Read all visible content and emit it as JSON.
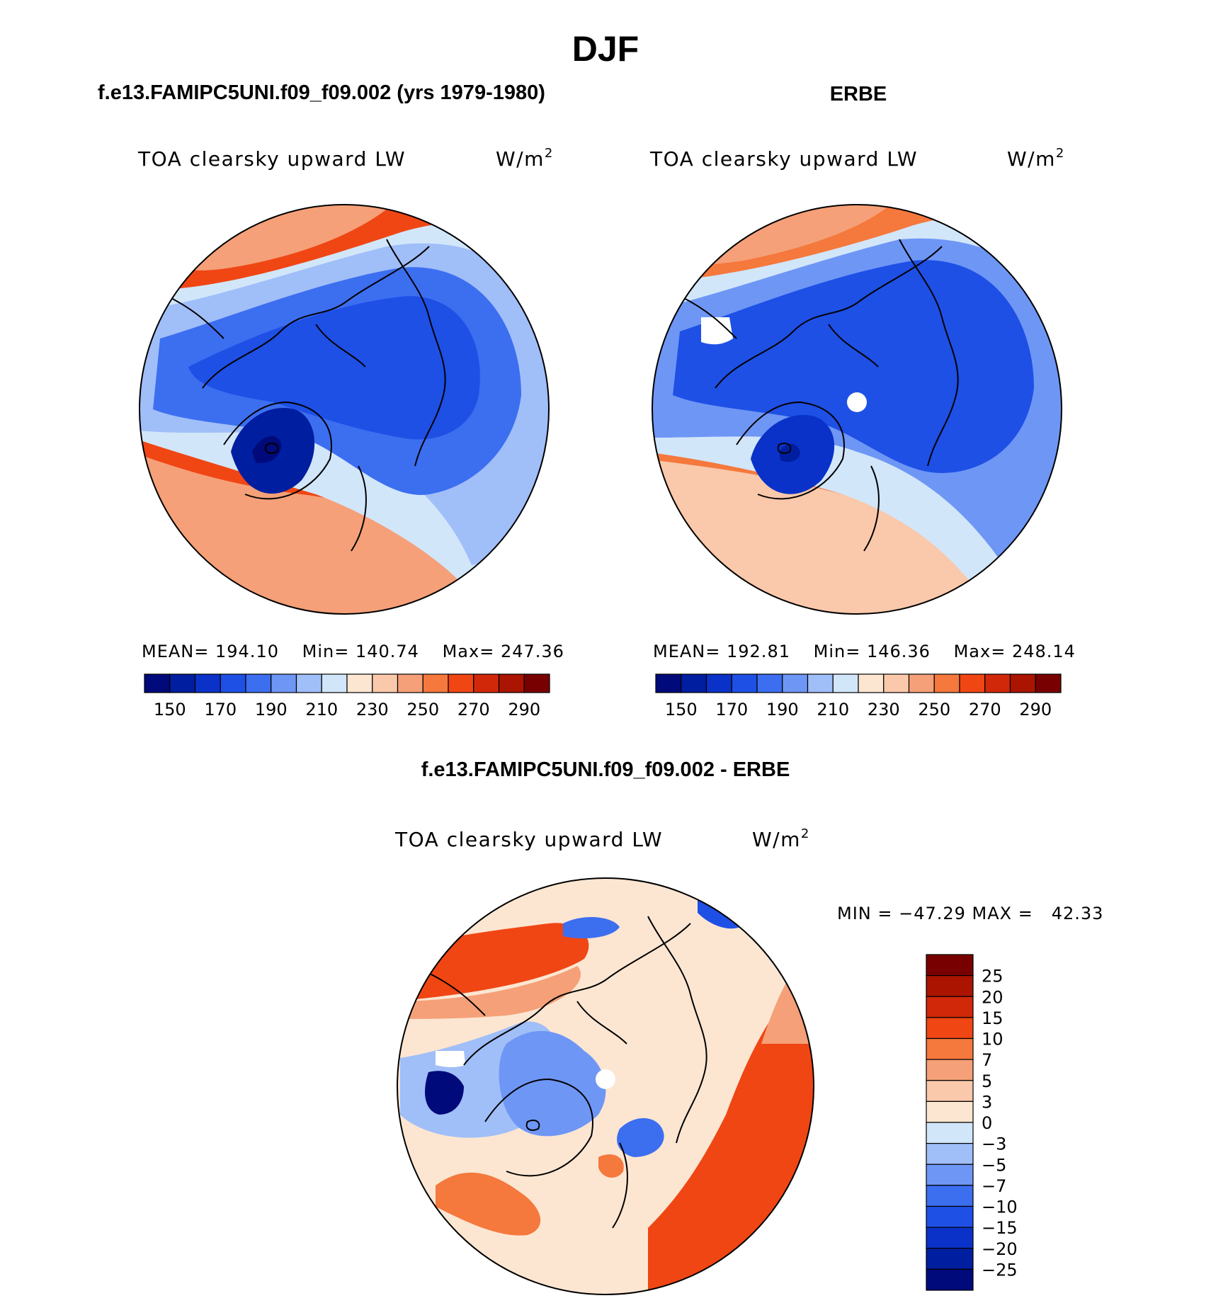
{
  "figure": {
    "title": "DJF"
  },
  "colors": {
    "abs_scale": [
      "#000a7a",
      "#001ea0",
      "#0a32c8",
      "#1e50e6",
      "#3c6ef0",
      "#6e96f5",
      "#a0bef8",
      "#d2e6fa",
      "#fce6d2",
      "#fac8aa",
      "#f5a078",
      "#f5783c",
      "#f04614",
      "#d2280a",
      "#aa1400",
      "#780000"
    ],
    "diff_scale": [
      "#000a7a",
      "#001ea0",
      "#0a32c8",
      "#1e50e6",
      "#3c6ef0",
      "#6e96f5",
      "#a0bef8",
      "#d2e6fa",
      "#fce6d2",
      "#fac8aa",
      "#f5a078",
      "#f5783c",
      "#f04614",
      "#d2280a",
      "#aa1400",
      "#780000"
    ],
    "coastline": "#000000"
  },
  "chart_data": [
    {
      "type": "heatmap",
      "projection": "polar-stereographic-north",
      "title": "f.e13.FAMIPC5UNI.f09_f09.002 (yrs 1979-1980)",
      "variable": "TOA clearsky upward LW",
      "units": "W/m",
      "units_exp": "2",
      "stats": {
        "mean_label": "MEAN=",
        "mean": "194.10",
        "min_label": "Min=",
        "min": "140.74",
        "max_label": "Max=",
        "max": "247.36"
      },
      "colorbar": {
        "orientation": "horizontal",
        "levels": [
          145,
          150,
          160,
          170,
          180,
          190,
          200,
          210,
          220,
          230,
          240,
          250,
          260,
          270,
          280,
          290
        ],
        "tick_labels": [
          "150",
          "170",
          "190",
          "210",
          "230",
          "250",
          "270",
          "290"
        ]
      }
    },
    {
      "type": "heatmap",
      "projection": "polar-stereographic-north",
      "title": "ERBE",
      "variable": "TOA clearsky upward LW",
      "units": "W/m",
      "units_exp": "2",
      "stats": {
        "mean_label": "MEAN=",
        "mean": "192.81",
        "min_label": "Min=",
        "min": "146.36",
        "max_label": "Max=",
        "max": "248.14"
      },
      "colorbar": {
        "orientation": "horizontal",
        "levels": [
          145,
          150,
          160,
          170,
          180,
          190,
          200,
          210,
          220,
          230,
          240,
          250,
          260,
          270,
          280,
          290
        ],
        "tick_labels": [
          "150",
          "170",
          "190",
          "210",
          "230",
          "250",
          "270",
          "290"
        ]
      }
    },
    {
      "type": "heatmap",
      "projection": "polar-stereographic-north",
      "title": "f.e13.FAMIPC5UNI.f09_f09.002 - ERBE",
      "variable": "TOA clearsky upward LW",
      "units": "W/m",
      "units_exp": "2",
      "stats": {
        "text": "MIN = −47.29 MAX =   42.33",
        "min": -47.29,
        "max": 42.33
      },
      "colorbar": {
        "orientation": "vertical",
        "tick_labels": [
          "25",
          "20",
          "15",
          "10",
          "7",
          "5",
          "3",
          "0",
          "−3",
          "−5",
          "−7",
          "−10",
          "−15",
          "−20",
          "−25"
        ]
      }
    }
  ]
}
